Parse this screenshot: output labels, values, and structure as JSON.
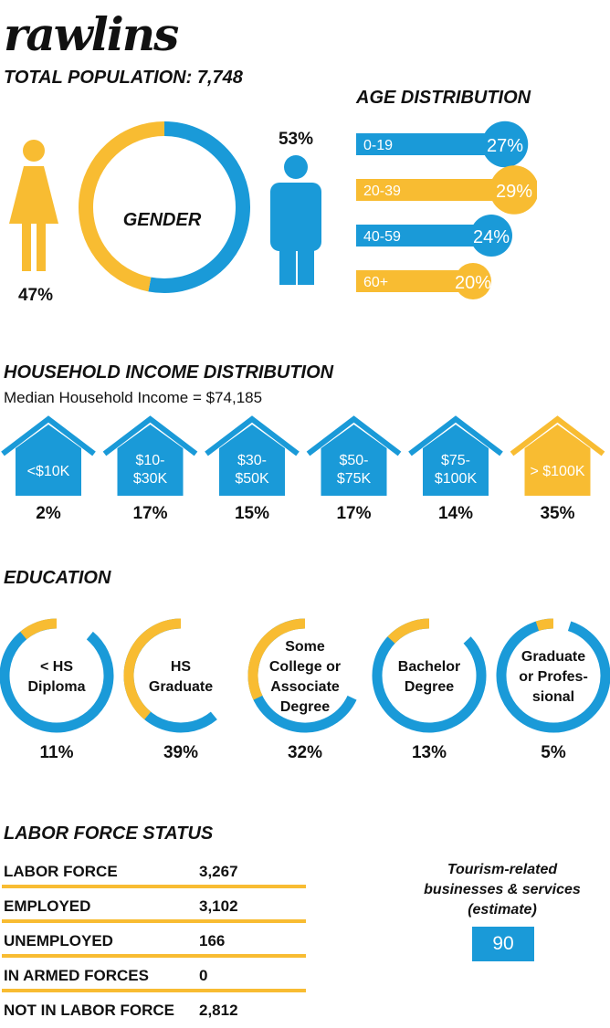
{
  "header": {
    "city": "rawlins",
    "population": "TOTAL POPULATION: 7,748"
  },
  "gender": {
    "title": "GENDER",
    "female_label": "47%",
    "male_label": "53%"
  },
  "age": {
    "title": "AGE DISTRIBUTION",
    "bars": [
      {
        "label": "0-19",
        "pct_label": "27%"
      },
      {
        "label": "20-39",
        "pct_label": "29%"
      },
      {
        "label": "40-59",
        "pct_label": "24%"
      },
      {
        "label": "60+",
        "pct_label": "20%"
      }
    ]
  },
  "income": {
    "title": "HOUSEHOLD INCOME DISTRIBUTION",
    "median": "Median Household Income = $74,185",
    "brackets": [
      {
        "label": "<$10K",
        "pct_label": "2%"
      },
      {
        "label": "$10-\n$30K",
        "pct_label": "17%"
      },
      {
        "label": "$30-\n$50K",
        "pct_label": "15%"
      },
      {
        "label": "$50-\n$75K",
        "pct_label": "17%"
      },
      {
        "label": "$75-\n$100K",
        "pct_label": "14%"
      },
      {
        "label": "> $100K",
        "pct_label": "35%"
      }
    ]
  },
  "education": {
    "title": "EDUCATION",
    "levels": [
      {
        "label": "< HS\nDiploma",
        "pct_label": "11%"
      },
      {
        "label": "HS\nGraduate",
        "pct_label": "39%"
      },
      {
        "label": "Some\nCollege or\nAssociate\nDegree",
        "pct_label": "32%"
      },
      {
        "label": "Bachelor\nDegree",
        "pct_label": "13%"
      },
      {
        "label": "Graduate\nor Profes-\nsional",
        "pct_label": "5%"
      }
    ]
  },
  "labor": {
    "title": "LABOR FORCE STATUS",
    "rows": [
      {
        "label": "LABOR FORCE",
        "value": "3,267"
      },
      {
        "label": "EMPLOYED",
        "value": "3,102"
      },
      {
        "label": "UNEMPLOYED",
        "value": "166"
      },
      {
        "label": "IN ARMED FORCES",
        "value": "0"
      },
      {
        "label": "NOT IN LABOR FORCE",
        "value": "2,812"
      }
    ]
  },
  "tourism": {
    "caption": "Tourism-related businesses & services (estimate)",
    "value": "90"
  },
  "colors": {
    "blue": "#1a9ad8",
    "yellow": "#f8bc32"
  },
  "chart_data": [
    {
      "type": "pie",
      "name": "gender",
      "categories": [
        "Female",
        "Male"
      ],
      "values": [
        47,
        53
      ],
      "title": "GENDER"
    },
    {
      "type": "bar",
      "name": "age",
      "title": "AGE DISTRIBUTION",
      "categories": [
        "0-19",
        "20-39",
        "40-59",
        "60+"
      ],
      "values": [
        27,
        29,
        24,
        20
      ]
    },
    {
      "type": "bar",
      "name": "income",
      "title": "HOUSEHOLD INCOME DISTRIBUTION",
      "categories": [
        "<$10K",
        "$10-$30K",
        "$30-$50K",
        "$50-$75K",
        "$75-$100K",
        "> $100K"
      ],
      "values": [
        2,
        17,
        15,
        17,
        14,
        35
      ]
    },
    {
      "type": "pie",
      "name": "education",
      "title": "EDUCATION",
      "categories": [
        "< HS Diploma",
        "HS Graduate",
        "Some College or Associate Degree",
        "Bachelor Degree",
        "Graduate or Professional"
      ],
      "values": [
        11,
        39,
        32,
        13,
        5
      ]
    }
  ]
}
